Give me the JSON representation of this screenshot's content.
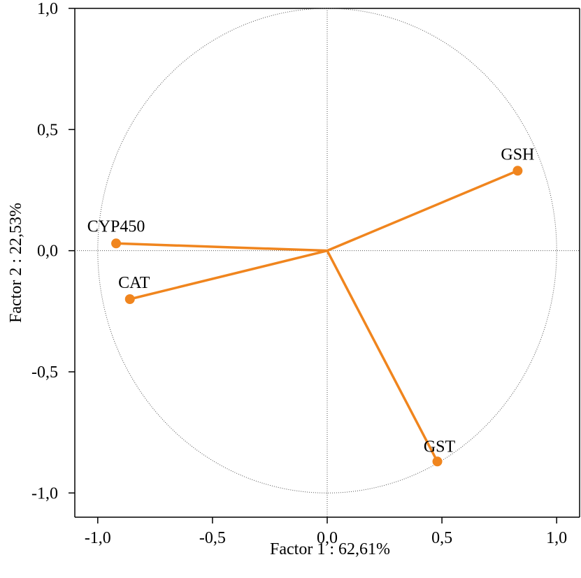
{
  "chart_data": {
    "type": "scatter",
    "subtype": "pca-correlation-circle",
    "xlabel": "Factor 1 : 62,61%",
    "ylabel": "Factor 2 : 22,53%",
    "xlim": [
      -1.1,
      1.1
    ],
    "ylim": [
      -1.1,
      1.0
    ],
    "x_ticks": [
      -1.0,
      -0.5,
      0.0,
      0.5,
      1.0
    ],
    "y_ticks": [
      -1.0,
      -0.5,
      0.0,
      0.5,
      1.0
    ],
    "x_tick_labels": [
      "-1,0",
      "-0,5",
      "0,0",
      "0,5",
      "1,0"
    ],
    "y_tick_labels": [
      "-1,0",
      "-0,5",
      "0,0",
      "0,5",
      "1,0"
    ],
    "unit_circle_radius": 1.0,
    "grid": false,
    "reference_lines": [
      0.0
    ],
    "color": "#F0851E",
    "points": [
      {
        "label": "GSH",
        "x": 0.83,
        "y": 0.33
      },
      {
        "label": "CYP450",
        "x": -0.92,
        "y": 0.03
      },
      {
        "label": "CAT",
        "x": -0.86,
        "y": -0.2
      },
      {
        "label": "GST",
        "x": 0.48,
        "y": -0.87
      }
    ]
  }
}
